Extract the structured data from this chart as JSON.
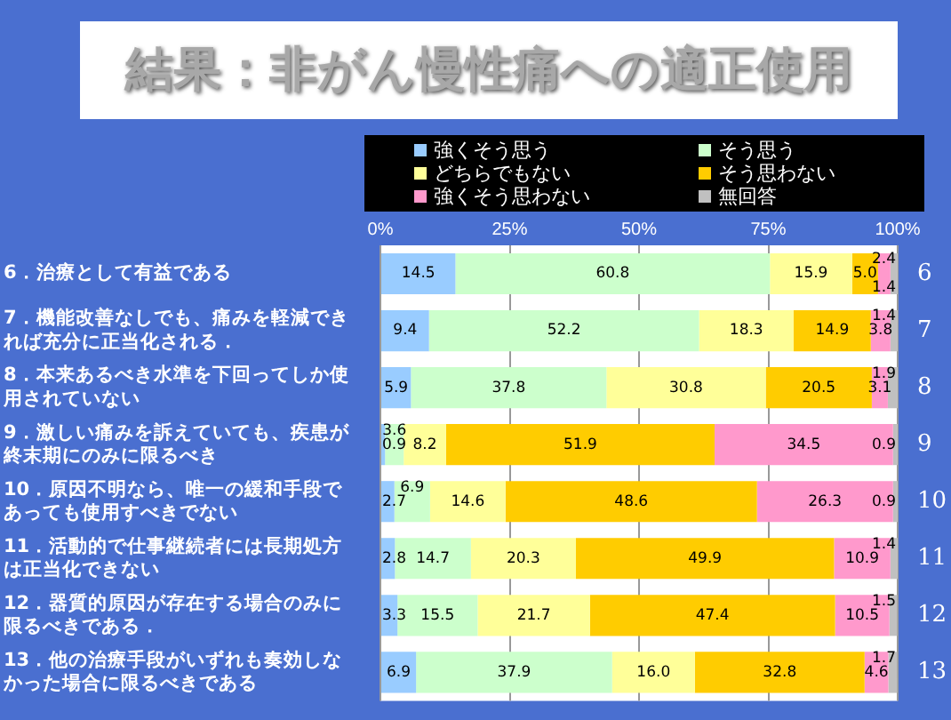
{
  "chart_data": {
    "type": "bar",
    "orientation": "horizontal",
    "stacked": true,
    "title": "結果：非がん慢性痛への適正使用",
    "categories": [
      "6．治療として有益である",
      "7．機能改善なしでも、痛みを軽減できれば充分に正当化される．",
      "8．本来あるべき水準を下回ってしか使用されていない",
      "9．激しい痛みを訴えていても、疾患が終末期にのみに限るべき",
      "10．原因不明なら、唯一の緩和手段であっても使用すべきでない",
      "11．活動的で仕事継続者には長期処方は正当化できない",
      "12．器質的原因が存在する場合のみに限るべきである．",
      "13．他の治療手段がいずれも奏効しなかった場合に限るべきである"
    ],
    "y2_categories": [
      "6",
      "7",
      "8",
      "9",
      "10",
      "11",
      "12",
      "13"
    ],
    "series": [
      {
        "name": "強くそう思う",
        "color": "#99ccff",
        "values": [
          14.5,
          9.4,
          5.9,
          0.9,
          2.7,
          2.8,
          3.3,
          6.9
        ],
        "value_labels": [
          "14.5",
          "9.4",
          "5.9",
          "0.9",
          "2.7",
          "2.8",
          "3.3",
          "6.9"
        ]
      },
      {
        "name": "そう思う",
        "color": "#ccffcc",
        "values": [
          60.8,
          52.2,
          37.8,
          3.6,
          6.9,
          14.7,
          15.5,
          37.9
        ],
        "value_labels": [
          "60.8",
          "52.2",
          "37.8",
          "3.6",
          "6.9",
          "14.7",
          "15.5",
          "37.9"
        ]
      },
      {
        "name": "どちらでもない",
        "color": "#ffff99",
        "values": [
          15.9,
          18.3,
          30.8,
          8.2,
          14.6,
          20.3,
          21.7,
          16.0
        ],
        "value_labels": [
          "15.9",
          "18.3",
          "30.8",
          "8.2",
          "14.6",
          "20.3",
          "21.7",
          "16.0"
        ]
      },
      {
        "name": "そう思わない",
        "color": "#ffcc00",
        "values": [
          5.0,
          14.9,
          20.5,
          51.9,
          48.6,
          49.9,
          47.4,
          32.8
        ],
        "value_labels": [
          "5.0",
          "14.9",
          "20.5",
          "51.9",
          "48.6",
          "49.9",
          "47.4",
          "32.8"
        ]
      },
      {
        "name": "強くそう思わない",
        "color": "#ff99cc",
        "values": [
          2.4,
          3.8,
          3.1,
          34.5,
          26.3,
          10.9,
          10.5,
          4.6
        ],
        "value_labels": [
          "2.4",
          "3.8",
          "3.1",
          "34.5",
          "26.3",
          "10.9",
          "10.5",
          "4.6"
        ]
      },
      {
        "name": "無回答",
        "color": "#c0c0c0",
        "values": [
          1.4,
          1.4,
          1.9,
          0.9,
          0.9,
          1.4,
          1.5,
          1.7
        ],
        "value_labels": [
          "1.4",
          "1.4",
          "1.9",
          "0.9",
          "0.9",
          "1.4",
          "1.5",
          "1.7"
        ]
      }
    ],
    "xlim": [
      0,
      100
    ],
    "xticks": [
      {
        "value": 0,
        "label": "0%"
      },
      {
        "value": 25,
        "label": "25%"
      },
      {
        "value": 50,
        "label": "50%"
      },
      {
        "value": 75,
        "label": "75%"
      },
      {
        "value": 100,
        "label": "100%"
      }
    ],
    "grid": "x",
    "legend": "top"
  }
}
